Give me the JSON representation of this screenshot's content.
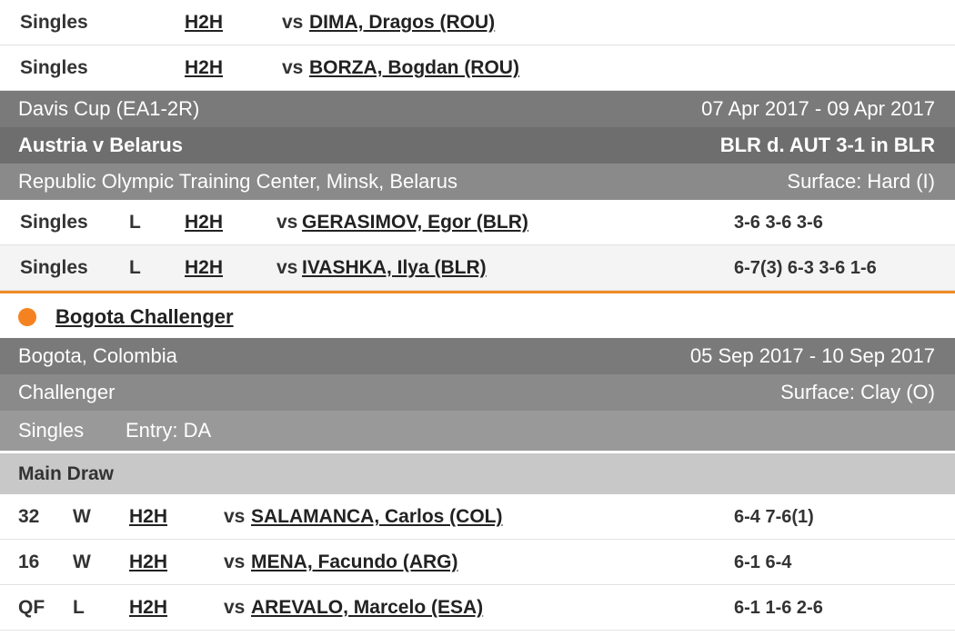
{
  "top_matches": [
    {
      "type": "Singles",
      "h2h": "H2H",
      "vs": "vs",
      "opponent": "DIMA, Dragos (ROU)"
    },
    {
      "type": "Singles",
      "h2h": "H2H",
      "vs": "vs",
      "opponent": "BORZA, Bogdan (ROU)"
    }
  ],
  "davis_cup": {
    "event": "Davis Cup (EA1-2R)",
    "dates": "07 Apr 2017 - 09 Apr 2017",
    "tie": "Austria v Belarus",
    "result": "BLR d. AUT 3-1 in BLR",
    "venue": "Republic Olympic Training Center, Minsk, Belarus",
    "surface": "Surface: Hard (I)",
    "matches": [
      {
        "type": "Singles",
        "result": "L",
        "h2h": "H2H",
        "vs": "vs",
        "opponent": "GERASIMOV, Egor (BLR)",
        "score": "3-6 3-6 3-6"
      },
      {
        "type": "Singles",
        "result": "L",
        "h2h": "H2H",
        "vs": "vs",
        "opponent": "IVASHKA, Ilya (BLR)",
        "score": "6-7(3) 6-3 3-6 1-6"
      }
    ]
  },
  "bogota": {
    "name": "Bogota Challenger",
    "location": "Bogota, Colombia",
    "dates": "05 Sep 2017 - 10 Sep 2017",
    "category": "Challenger",
    "surface": "Surface: Clay (O)",
    "draw_type": "Singles",
    "entry": "Entry: DA",
    "section": "Main Draw",
    "matches": [
      {
        "round": "32",
        "result": "W",
        "h2h": "H2H",
        "vs": "vs",
        "opponent": "SALAMANCA, Carlos (COL)",
        "score": "6-4 7-6(1)"
      },
      {
        "round": "16",
        "result": "W",
        "h2h": "H2H",
        "vs": "vs",
        "opponent": "MENA, Facundo (ARG)",
        "score": "6-1 6-4"
      },
      {
        "round": "QF",
        "result": "L",
        "h2h": "H2H",
        "vs": "vs",
        "opponent": "AREVALO, Marcelo (ESA)",
        "score": "6-1 1-6 2-6"
      }
    ]
  },
  "colors": {
    "accent": "#f58220",
    "band_dark": "#7a7a7a",
    "band_light": "#999999",
    "draw_header": "#c8c8c8"
  }
}
